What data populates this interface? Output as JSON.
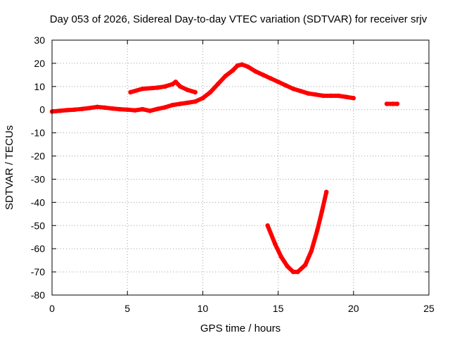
{
  "chart_data": {
    "type": "scatter",
    "title": "Day 053 of 2026, Sidereal Day-to-day VTEC variation (SDTVAR) for receiver srjv",
    "xlabel": "GPS time / hours",
    "ylabel": "SDTVAR / TECUs",
    "xlim": [
      0,
      25
    ],
    "ylim": [
      -80,
      30
    ],
    "grid": true,
    "x_ticks": [
      0,
      5,
      10,
      15,
      20,
      25
    ],
    "y_ticks": [
      30,
      20,
      10,
      0,
      -10,
      -20,
      -30,
      -40,
      -50,
      -60,
      -70,
      -80
    ],
    "x_tick_labels": [
      "0",
      "5",
      "10",
      "15",
      "20",
      "25"
    ],
    "y_tick_labels": [
      "30",
      "20",
      "10",
      "0",
      "-10",
      "-20",
      "-30",
      "-40",
      "-50",
      "-60",
      "-70",
      "-80"
    ],
    "color": "#ff0000",
    "series": [
      {
        "name": "main-trace",
        "points": [
          [
            0.0,
            -0.8
          ],
          [
            0.5,
            -0.5
          ],
          [
            1.0,
            -0.2
          ],
          [
            1.5,
            0.0
          ],
          [
            2.0,
            0.3
          ],
          [
            2.5,
            0.7
          ],
          [
            3.0,
            1.2
          ],
          [
            3.5,
            0.9
          ],
          [
            4.0,
            0.5
          ],
          [
            4.5,
            0.2
          ],
          [
            5.0,
            0.0
          ],
          [
            5.5,
            -0.3
          ],
          [
            6.0,
            0.2
          ],
          [
            6.5,
            -0.5
          ],
          [
            7.0,
            0.3
          ],
          [
            7.5,
            1.0
          ],
          [
            8.0,
            2.0
          ],
          [
            8.5,
            2.5
          ],
          [
            9.0,
            3.0
          ],
          [
            9.5,
            3.5
          ],
          [
            10.0,
            5.0
          ],
          [
            10.5,
            7.5
          ],
          [
            11.0,
            11.0
          ],
          [
            11.5,
            14.5
          ],
          [
            12.0,
            17.0
          ],
          [
            12.3,
            19.0
          ],
          [
            12.6,
            19.5
          ],
          [
            13.0,
            18.5
          ],
          [
            13.5,
            16.5
          ],
          [
            14.0,
            15.0
          ],
          [
            14.5,
            13.5
          ],
          [
            15.0,
            12.0
          ],
          [
            15.5,
            10.5
          ],
          [
            16.0,
            9.0
          ],
          [
            16.5,
            8.0
          ],
          [
            17.0,
            7.0
          ],
          [
            17.5,
            6.5
          ],
          [
            18.0,
            6.0
          ],
          [
            18.5,
            6.0
          ],
          [
            19.0,
            6.0
          ],
          [
            19.5,
            5.5
          ],
          [
            20.0,
            5.0
          ]
        ]
      },
      {
        "name": "upper-arc",
        "points": [
          [
            5.2,
            7.5
          ],
          [
            6.0,
            9.0
          ],
          [
            7.0,
            9.5
          ],
          [
            7.5,
            10.0
          ],
          [
            8.0,
            11.0
          ],
          [
            8.2,
            12.0
          ],
          [
            8.5,
            10.0
          ],
          [
            9.0,
            8.5
          ],
          [
            9.5,
            7.5
          ]
        ]
      },
      {
        "name": "late-segment",
        "points": [
          [
            22.2,
            2.5
          ],
          [
            22.6,
            2.5
          ],
          [
            22.9,
            2.5
          ]
        ]
      },
      {
        "name": "deep-dip",
        "points": [
          [
            14.3,
            -50.0
          ],
          [
            14.8,
            -58.0
          ],
          [
            15.2,
            -63.5
          ],
          [
            15.6,
            -67.5
          ],
          [
            16.0,
            -70.0
          ],
          [
            16.3,
            -70.0
          ],
          [
            16.8,
            -67.0
          ],
          [
            17.2,
            -61.0
          ],
          [
            17.6,
            -52.0
          ],
          [
            17.9,
            -44.0
          ],
          [
            18.2,
            -35.5
          ]
        ]
      }
    ]
  }
}
